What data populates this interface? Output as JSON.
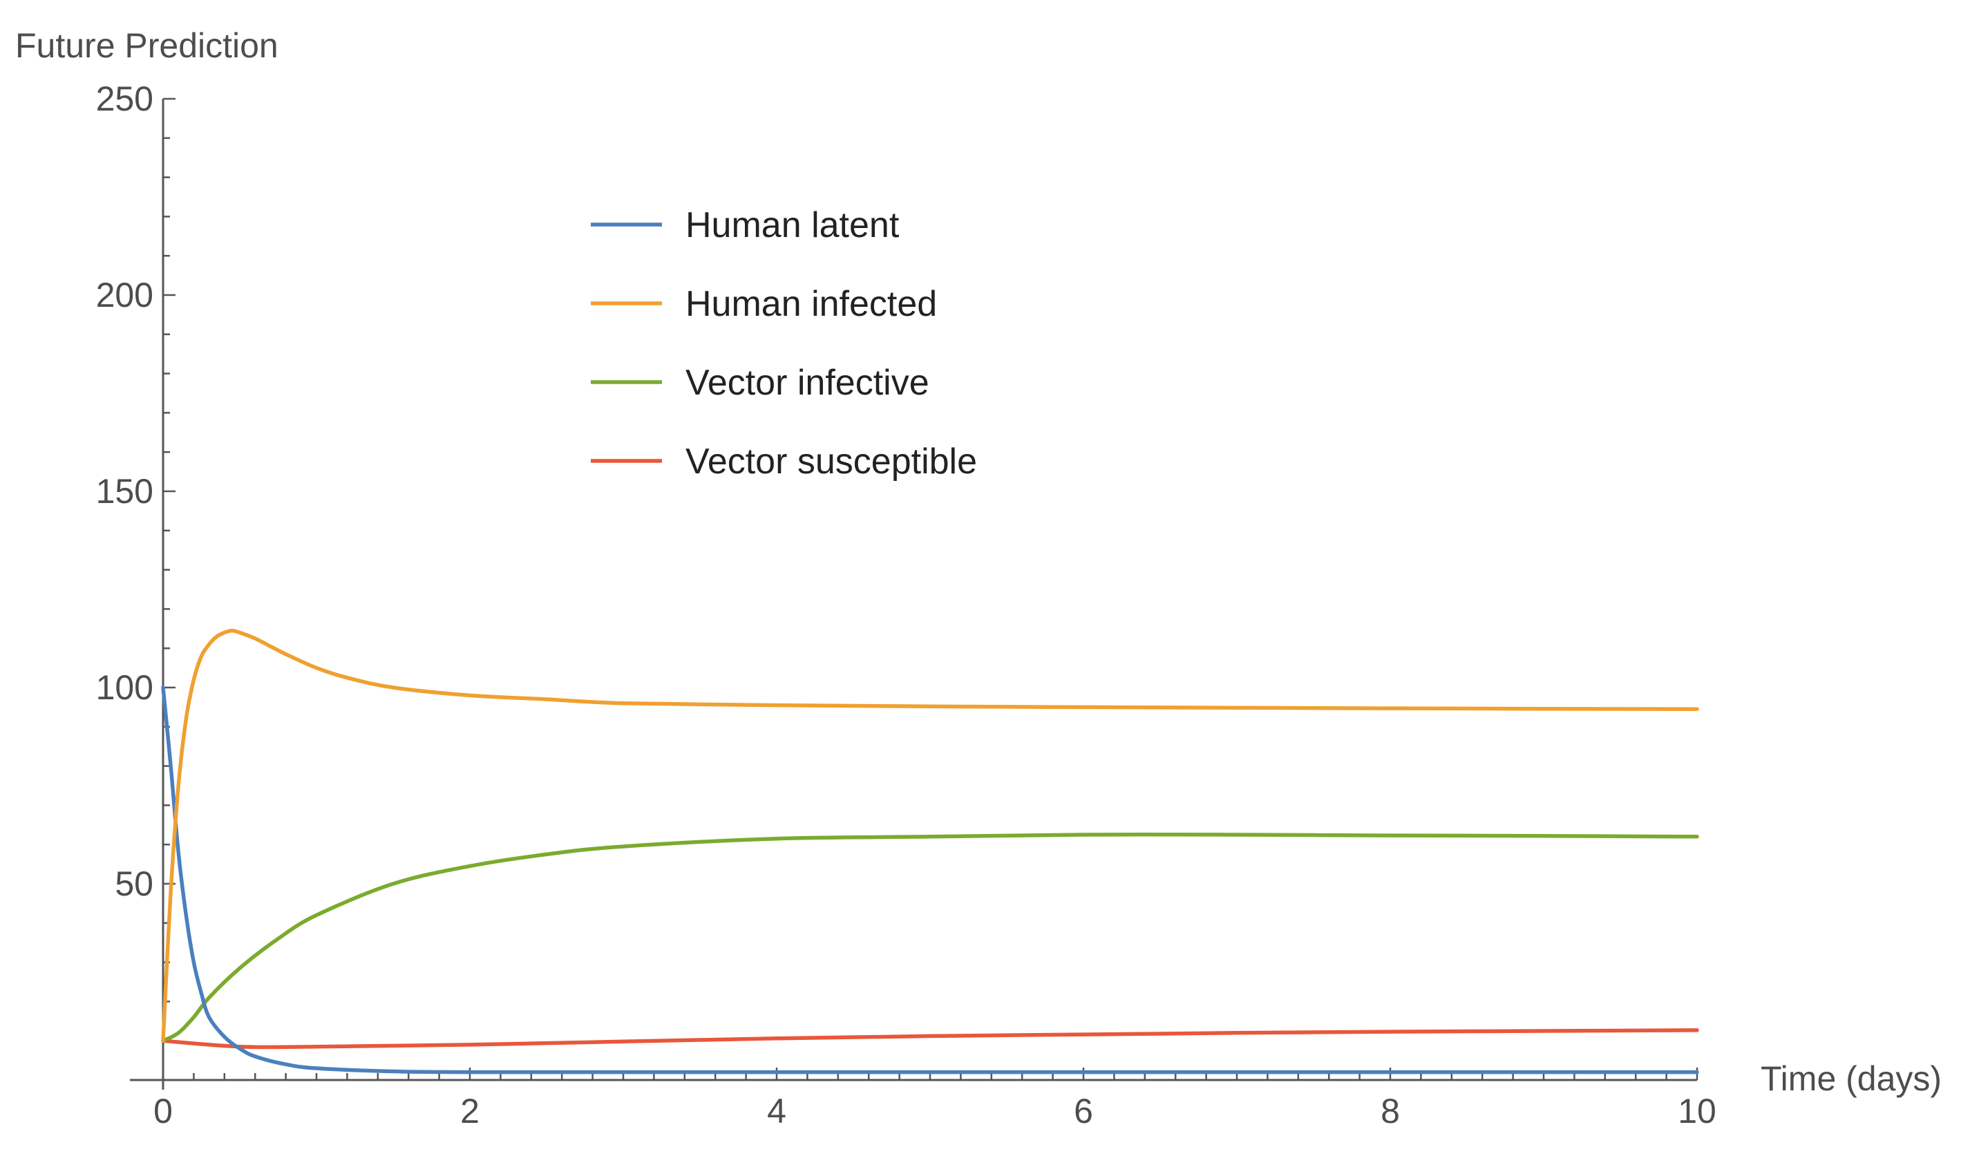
{
  "chart_data": {
    "type": "line",
    "title": "",
    "ylabel": "Future Prediction",
    "xlabel": "Time (days)",
    "xlim": [
      0,
      10
    ],
    "ylim": [
      0,
      250
    ],
    "x_ticks": [
      0,
      2,
      4,
      6,
      8,
      10
    ],
    "y_ticks": [
      50,
      100,
      150,
      200,
      250
    ],
    "grid": false,
    "legend_position": "top-center",
    "series": [
      {
        "name": "Human latent",
        "color": "#4b7fbf",
        "x": [
          0,
          0.05,
          0.1,
          0.15,
          0.2,
          0.25,
          0.3,
          0.4,
          0.5,
          0.6,
          0.8,
          1.0,
          1.5,
          2,
          3,
          4,
          6,
          8,
          10
        ],
        "y": [
          100,
          80,
          58,
          42,
          30,
          22,
          16,
          11,
          8,
          6,
          4,
          3,
          2.2,
          2,
          2,
          2,
          2,
          2,
          2
        ]
      },
      {
        "name": "Human infected",
        "color": "#f0a030",
        "x": [
          0,
          0.05,
          0.1,
          0.15,
          0.2,
          0.25,
          0.3,
          0.35,
          0.4,
          0.45,
          0.5,
          0.6,
          0.7,
          0.8,
          1.0,
          1.2,
          1.5,
          2,
          2.5,
          3,
          4,
          5,
          6,
          8,
          10
        ],
        "y": [
          10,
          48,
          75,
          92,
          102,
          108,
          111,
          113,
          114,
          114.5,
          114,
          112.5,
          110.5,
          108.5,
          105,
          102.5,
          100,
          98,
          97,
          96,
          95.5,
          95.2,
          95,
          94.7,
          94.5
        ]
      },
      {
        "name": "Vector infective",
        "color": "#7aab2e",
        "x": [
          0,
          0.1,
          0.2,
          0.3,
          0.5,
          0.75,
          1.0,
          1.5,
          2,
          2.5,
          3,
          4,
          5,
          6,
          7,
          8,
          9,
          10
        ],
        "y": [
          10,
          12,
          16,
          21,
          28.5,
          36,
          42,
          50,
          54.5,
          57.5,
          59.5,
          61.5,
          62,
          62.5,
          62.5,
          62.3,
          62.2,
          62
        ]
      },
      {
        "name": "Vector susceptible",
        "color": "#e8573a",
        "x": [
          0,
          0.5,
          1,
          2,
          3,
          4,
          5,
          6,
          7,
          8,
          9,
          10
        ],
        "y": [
          10,
          8.5,
          8.5,
          9,
          9.8,
          10.6,
          11.2,
          11.6,
          12,
          12.3,
          12.5,
          12.7
        ]
      }
    ]
  }
}
